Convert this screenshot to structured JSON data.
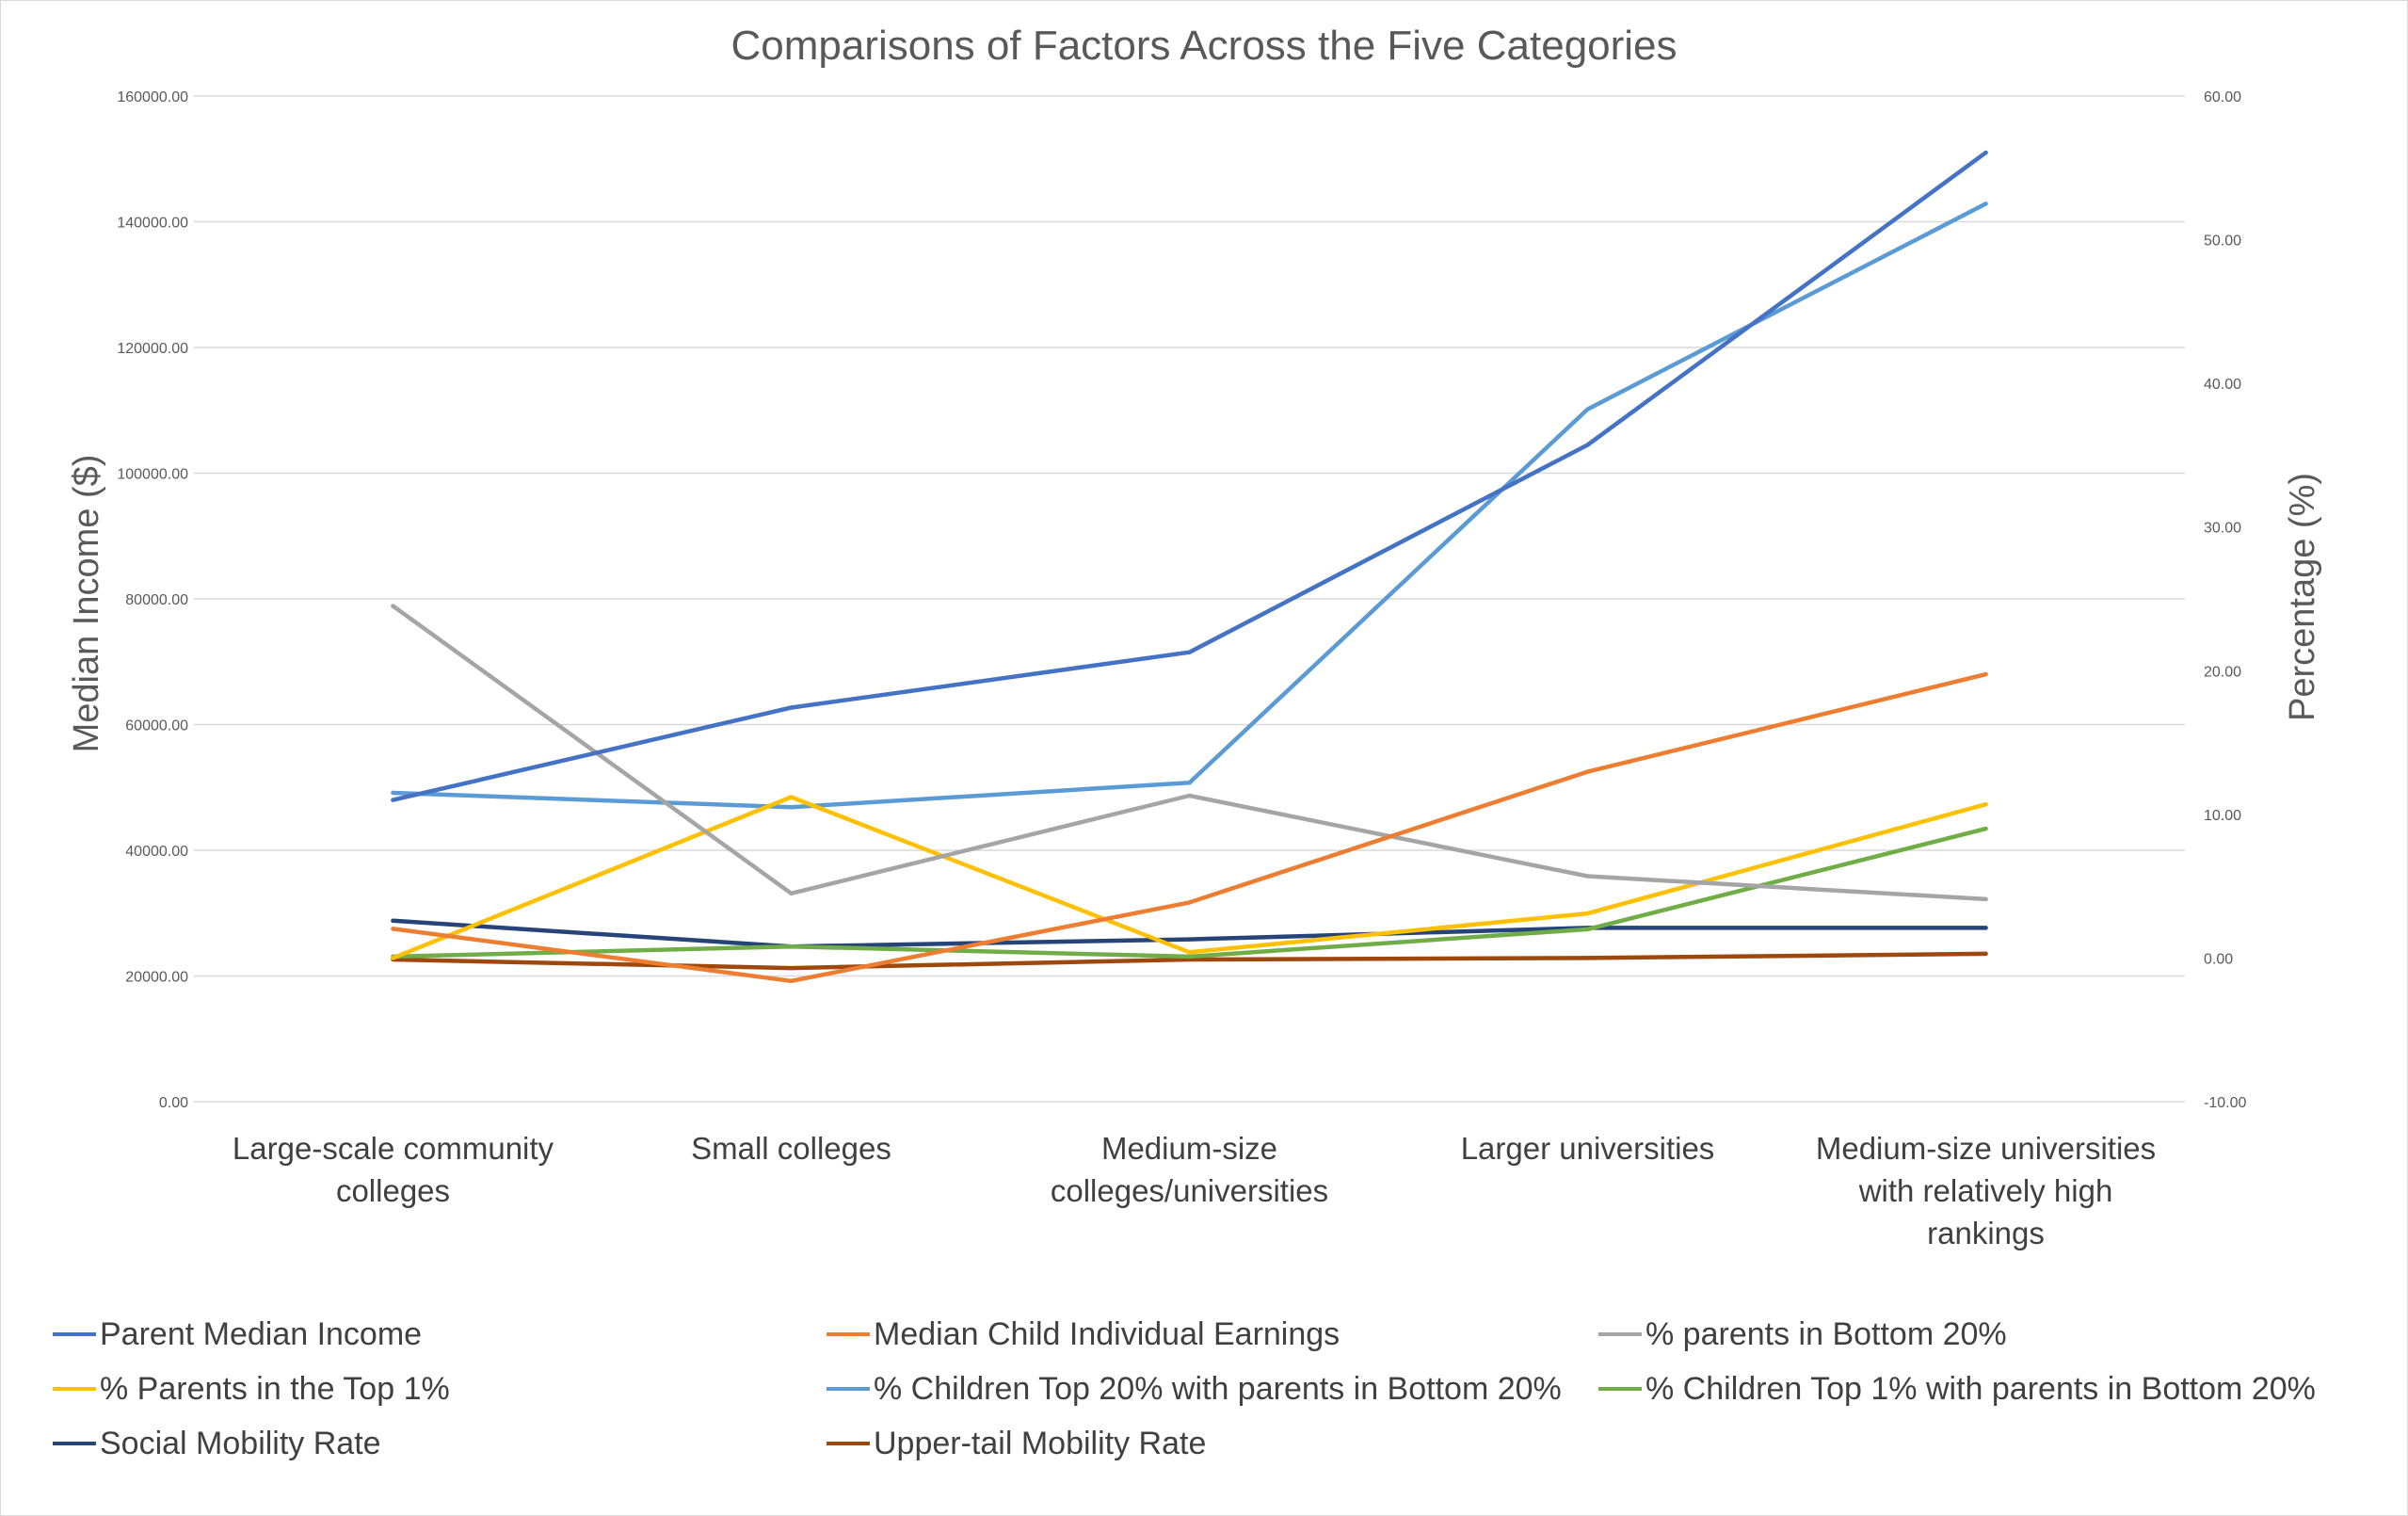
{
  "chart_data": {
    "type": "line",
    "title": "Comparisons of Factors Across the Five Categories",
    "ylabel": "Median Income ($)",
    "y2label": "Percentage (%)",
    "ylim": [
      0,
      160000
    ],
    "y2lim": [
      -10,
      60
    ],
    "grid": true,
    "legend_position": "bottom",
    "y_ticks": [
      "0.00",
      "20000.00",
      "40000.00",
      "60000.00",
      "80000.00",
      "100000.00",
      "120000.00",
      "140000.00",
      "160000.00"
    ],
    "y2_ticks": [
      "-10.00",
      "0.00",
      "10.00",
      "20.00",
      "30.00",
      "40.00",
      "50.00",
      "60.00"
    ],
    "categories": [
      [
        "Large-scale community",
        "colleges"
      ],
      [
        "Small colleges"
      ],
      [
        "Medium-size",
        "colleges/universities"
      ],
      [
        "Larger universities"
      ],
      [
        "Medium-size universities",
        "with relatively high",
        "rankings"
      ]
    ],
    "series": [
      {
        "name": "Parent Median Income",
        "axis": "left",
        "color": "#4472C4",
        "values": [
          48000,
          62700,
          71500,
          104500,
          151000
        ]
      },
      {
        "name": "Median Child Individual Earnings",
        "axis": "left",
        "color": "#ED7D31",
        "values": [
          27500,
          19200,
          31700,
          52500,
          68000
        ]
      },
      {
        "name": "% parents in  Bottom 20%",
        "axis": "right",
        "color": "#A5A5A5",
        "values": [
          24.5,
          4.5,
          11.3,
          5.7,
          4.1
        ]
      },
      {
        "name": "% Parents in the Top 1%",
        "axis": "right",
        "color": "#FFC000",
        "values": [
          0.0,
          11.2,
          0.4,
          3.1,
          10.7
        ]
      },
      {
        "name": "% Children Top 20% with parents in Bottom 20%",
        "axis": "right",
        "color": "#5B9BD5",
        "values": [
          11.5,
          10.5,
          12.2,
          38.2,
          52.5
        ]
      },
      {
        "name": "% Children Top 1% with parents in Bottom 20%",
        "axis": "right",
        "color": "#70AD47",
        "values": [
          0.1,
          0.8,
          0.1,
          2.0,
          9.0
        ]
      },
      {
        "name": "Social Mobility Rate",
        "axis": "right",
        "color": "#264478",
        "values": [
          2.6,
          0.8,
          1.3,
          2.1,
          2.1
        ]
      },
      {
        "name": "Upper-tail Mobility Rate",
        "axis": "right",
        "color": "#9E480E",
        "values": [
          -0.1,
          -0.7,
          -0.1,
          0.0,
          0.3
        ]
      }
    ]
  }
}
